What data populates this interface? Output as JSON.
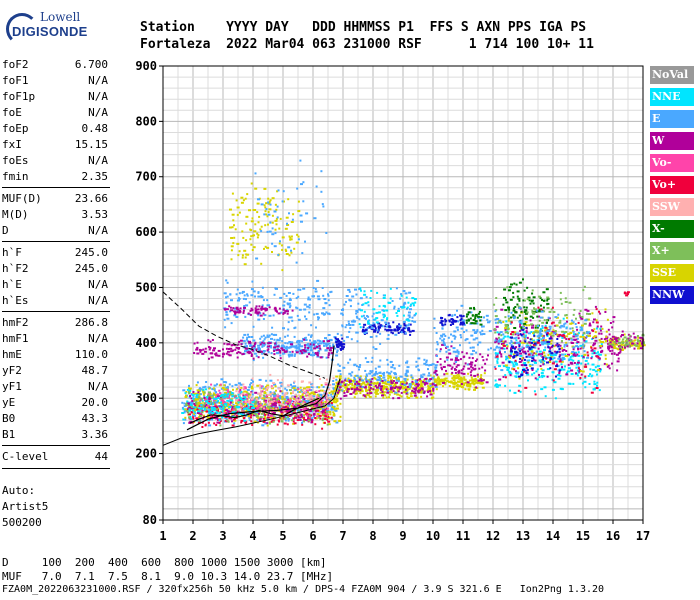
{
  "logo": {
    "top": "Lowell",
    "bottom": "DIGISONDE"
  },
  "header": {
    "line1": "Station    YYYY DAY   DDD HHMMSS P1  FFS S AXN PPS IGA PS",
    "line2": "Fortaleza  2022 Mar04 063 231000 RSF      1 714 100 10+ 11"
  },
  "parameters": [
    {
      "name": "foF2",
      "value": "6.700"
    },
    {
      "name": "foF1",
      "value": "N/A"
    },
    {
      "name": "foF1p",
      "value": "N/A"
    },
    {
      "name": "foE",
      "value": "N/A"
    },
    {
      "name": "foEp",
      "value": "0.48"
    },
    {
      "name": "fxI",
      "value": "15.15"
    },
    {
      "name": "foEs",
      "value": "N/A"
    },
    {
      "name": "fmin",
      "value": "2.35"
    },
    {
      "name": "MUF(D)",
      "value": "23.66"
    },
    {
      "name": "M(D)",
      "value": "3.53"
    },
    {
      "name": "D",
      "value": "N/A"
    },
    {
      "name": "h`F",
      "value": "245.0"
    },
    {
      "name": "h`F2",
      "value": "245.0"
    },
    {
      "name": "h`E",
      "value": "N/A"
    },
    {
      "name": "h`Es",
      "value": "N/A"
    },
    {
      "name": "hmF2",
      "value": "286.8"
    },
    {
      "name": "hmF1",
      "value": "N/A"
    },
    {
      "name": "hmE",
      "value": "110.0"
    },
    {
      "name": "yF2",
      "value": "48.7"
    },
    {
      "name": "yF1",
      "value": "N/A"
    },
    {
      "name": "yE",
      "value": "20.0"
    },
    {
      "name": "B0",
      "value": "43.3"
    },
    {
      "name": "B1",
      "value": "3.36"
    },
    {
      "name": "C-level",
      "value": "44"
    }
  ],
  "auto": {
    "line1": "Auto:",
    "line2": "Artist5",
    "line3": "500200"
  },
  "legend": [
    {
      "label": "NoVal",
      "color": "#999999"
    },
    {
      "label": "NNE",
      "color": "#00e5ff"
    },
    {
      "label": "E",
      "color": "#4aa8ff"
    },
    {
      "label": "W",
      "color": "#b0009a"
    },
    {
      "label": "Vo-",
      "color": "#ff44aa"
    },
    {
      "label": "Vo+",
      "color": "#f0003c"
    },
    {
      "label": "SSW",
      "color": "#ffb0b0"
    },
    {
      "label": "X-",
      "color": "#007a00"
    },
    {
      "label": "X+",
      "color": "#7ebf5a"
    },
    {
      "label": "SSE",
      "color": "#d8d400"
    },
    {
      "label": "NNW",
      "color": "#1010d0"
    }
  ],
  "footer": {
    "d_line": "D     100  200  400  600  800 1000 1500 3000 [km]",
    "muf_line": "MUF   7.0  7.1  7.5  8.1  9.0 10.3 14.0 23.7 [MHz]",
    "file_line": "FZA0M_2022063231000.RSF / 320fx256h 50 kHz 5.0 km / DPS-4 FZA0M 904 / 3.9 S 321.6 E   Ion2Png 1.3.20"
  },
  "chart_data": {
    "type": "scatter",
    "xlim": [
      1,
      17
    ],
    "ylim": [
      80,
      900
    ],
    "xticks": [
      "1",
      "2",
      "3",
      "4",
      "5",
      "6",
      "7",
      "8",
      "9",
      "10",
      "11",
      "12",
      "13",
      "14",
      "15",
      "16",
      "17"
    ],
    "yticks": [
      {
        "value": 80,
        "label": "80"
      },
      {
        "value": 200,
        "label": "200"
      },
      {
        "value": 300,
        "label": "300"
      },
      {
        "value": 400,
        "label": "400"
      },
      {
        "value": 500,
        "label": "500"
      },
      {
        "value": 600,
        "label": "600"
      },
      {
        "value": 700,
        "label": "700"
      },
      {
        "value": 800,
        "label": "800"
      },
      {
        "value": 900,
        "label": "900"
      }
    ],
    "grid": true,
    "profile": [
      [
        1.8,
        243
      ],
      [
        2.5,
        262
      ],
      [
        3.2,
        272
      ],
      [
        4.0,
        276
      ],
      [
        4.8,
        278
      ],
      [
        5.5,
        282
      ],
      [
        6.1,
        290
      ],
      [
        6.4,
        305
      ],
      [
        6.55,
        330
      ],
      [
        6.65,
        370
      ],
      [
        6.7,
        395
      ]
    ],
    "upper_bound": [
      [
        1.0,
        492
      ],
      [
        1.6,
        462
      ],
      [
        2.2,
        430
      ],
      [
        2.8,
        412
      ],
      [
        3.4,
        397
      ],
      [
        4.0,
        388
      ],
      [
        4.6,
        375
      ],
      [
        5.2,
        360
      ],
      [
        5.8,
        348
      ],
      [
        6.4,
        336
      ]
    ],
    "lower_bound": [
      [
        1.0,
        215
      ],
      [
        1.6,
        228
      ],
      [
        2.2,
        236
      ],
      [
        2.8,
        242
      ],
      [
        3.4,
        248
      ],
      [
        4.0,
        255
      ],
      [
        4.6,
        262
      ],
      [
        5.2,
        270
      ],
      [
        5.8,
        278
      ],
      [
        6.4,
        286
      ],
      [
        6.7,
        300
      ],
      [
        6.9,
        335
      ]
    ],
    "trace": [
      [
        1.9,
        255
      ],
      [
        2.2,
        262
      ],
      [
        2.6,
        270
      ],
      [
        3.0,
        268
      ],
      [
        3.4,
        265
      ],
      [
        3.8,
        270
      ],
      [
        4.2,
        278
      ],
      [
        4.6,
        272
      ],
      [
        5.0,
        268
      ],
      [
        5.4,
        280
      ],
      [
        5.8,
        290
      ],
      [
        6.2,
        300
      ]
    ],
    "clusters": [
      {
        "series": "E",
        "xr": [
          1.6,
          6.8
        ],
        "yr": [
          250,
          340
        ],
        "n": 520
      },
      {
        "series": "SSE",
        "xr": [
          1.7,
          6.9
        ],
        "yr": [
          250,
          330
        ],
        "n": 420
      },
      {
        "series": "Vo+",
        "xr": [
          1.8,
          6.6
        ],
        "yr": [
          245,
          300
        ],
        "n": 200
      },
      {
        "series": "W",
        "xr": [
          1.7,
          6.6
        ],
        "yr": [
          250,
          320
        ],
        "n": 180
      },
      {
        "series": "Vo-",
        "xr": [
          2.2,
          6.5
        ],
        "yr": [
          260,
          330
        ],
        "n": 140
      },
      {
        "series": "X+",
        "xr": [
          1.7,
          6.5
        ],
        "yr": [
          250,
          320
        ],
        "n": 120
      },
      {
        "series": "SSW",
        "xr": [
          3.4,
          6.8
        ],
        "yr": [
          270,
          345
        ],
        "n": 120
      },
      {
        "series": "NNE",
        "xr": [
          1.6,
          4.0
        ],
        "yr": [
          260,
          320
        ],
        "n": 120
      },
      {
        "series": "E",
        "xr": [
          3.6,
          6.8
        ],
        "yr": [
          370,
          420
        ],
        "n": 260
      },
      {
        "series": "W",
        "xr": [
          2.0,
          6.6
        ],
        "yr": [
          370,
          410
        ],
        "n": 150
      },
      {
        "series": "NNW",
        "xr": [
          6.7,
          7.0
        ],
        "yr": [
          380,
          420
        ],
        "n": 30
      },
      {
        "series": "E",
        "xr": [
          3.0,
          6.6
        ],
        "yr": [
          420,
          520
        ],
        "n": 160
      },
      {
        "series": "W",
        "xr": [
          3.0,
          5.3
        ],
        "yr": [
          450,
          470
        ],
        "n": 70
      },
      {
        "series": "SSE",
        "xr": [
          3.2,
          5.5
        ],
        "yr": [
          520,
          700
        ],
        "n": 130
      },
      {
        "series": "E",
        "xr": [
          4.0,
          6.5
        ],
        "yr": [
          520,
          740
        ],
        "n": 50
      },
      {
        "series": "SSE",
        "xr": [
          6.7,
          10.0
        ],
        "yr": [
          300,
          345
        ],
        "n": 360
      },
      {
        "series": "E",
        "xr": [
          6.8,
          10.1
        ],
        "yr": [
          310,
          380
        ],
        "n": 160
      },
      {
        "series": "W",
        "xr": [
          6.8,
          10.0
        ],
        "yr": [
          300,
          340
        ],
        "n": 120
      },
      {
        "series": "NNW",
        "xr": [
          7.6,
          9.3
        ],
        "yr": [
          415,
          440
        ],
        "n": 80
      },
      {
        "series": "E",
        "xr": [
          6.9,
          9.4
        ],
        "yr": [
          380,
          510
        ],
        "n": 120
      },
      {
        "series": "NNE",
        "xr": [
          7.5,
          9.4
        ],
        "yr": [
          420,
          520
        ],
        "n": 60
      },
      {
        "series": "SSE",
        "xr": [
          10.0,
          11.7
        ],
        "yr": [
          315,
          350
        ],
        "n": 150
      },
      {
        "series": "W",
        "xr": [
          10.0,
          11.8
        ],
        "yr": [
          320,
          400
        ],
        "n": 90
      },
      {
        "series": "E",
        "xr": [
          10.0,
          11.9
        ],
        "yr": [
          360,
          470
        ],
        "n": 100
      },
      {
        "series": "NNW",
        "xr": [
          10.2,
          11.0
        ],
        "yr": [
          430,
          455
        ],
        "n": 40
      },
      {
        "series": "X-",
        "xr": [
          11.0,
          11.6
        ],
        "yr": [
          430,
          470
        ],
        "n": 30
      },
      {
        "series": "NNE",
        "xr": [
          12.0,
          15.6
        ],
        "yr": [
          300,
          450
        ],
        "n": 260
      },
      {
        "series": "W",
        "xr": [
          12.0,
          16.2
        ],
        "yr": [
          330,
          470
        ],
        "n": 260
      },
      {
        "series": "SSE",
        "xr": [
          12.3,
          15.8
        ],
        "yr": [
          330,
          470
        ],
        "n": 120
      },
      {
        "series": "X-",
        "xr": [
          12.3,
          13.8
        ],
        "yr": [
          420,
          520
        ],
        "n": 90
      },
      {
        "series": "X+",
        "xr": [
          12.0,
          15.2
        ],
        "yr": [
          380,
          510
        ],
        "n": 100
      },
      {
        "series": "E",
        "xr": [
          12.0,
          15.2
        ],
        "yr": [
          340,
          470
        ],
        "n": 150
      },
      {
        "series": "Vo+",
        "xr": [
          12.0,
          15.5
        ],
        "yr": [
          300,
          490
        ],
        "n": 50
      },
      {
        "series": "NNW",
        "xr": [
          12.5,
          14.2
        ],
        "yr": [
          330,
          440
        ],
        "n": 70
      },
      {
        "series": "SSE",
        "xr": [
          15.8,
          17.0
        ],
        "yr": [
          385,
          420
        ],
        "n": 70
      },
      {
        "series": "W",
        "xr": [
          15.8,
          17.0
        ],
        "yr": [
          385,
          425
        ],
        "n": 50
      },
      {
        "series": "X+",
        "xr": [
          15.8,
          17.0
        ],
        "yr": [
          390,
          420
        ],
        "n": 30
      },
      {
        "series": "Vo+",
        "xr": [
          16.3,
          16.5
        ],
        "yr": [
          485,
          495
        ],
        "n": 6
      }
    ]
  }
}
